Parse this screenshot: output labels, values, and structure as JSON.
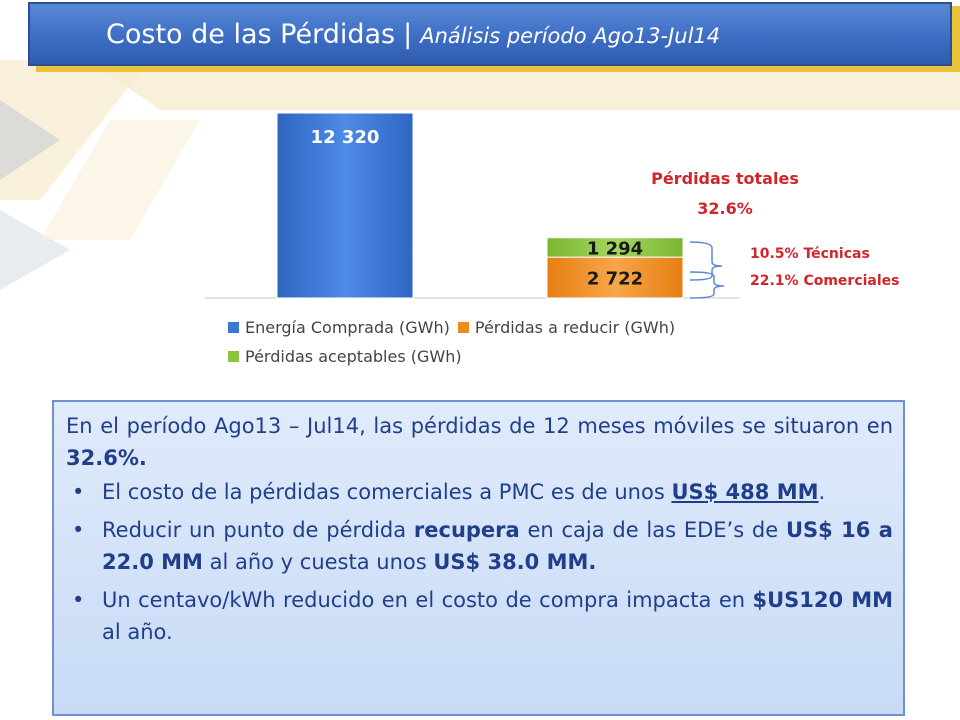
{
  "header": {
    "title": "Costo de las Pérdidas",
    "separator": "|",
    "subtitle": "Análisis período Ago13-Jul14"
  },
  "colors": {
    "title_bar": "#3d6ec4",
    "title_shadow": "#e8c23a",
    "energia": "#3a78d6",
    "perdidas_reducir": "#f08a1c",
    "perdidas_aceptables": "#8cc43e",
    "annotation_red": "#d0262b",
    "text_blue": "#1f3f8a"
  },
  "chart_data": {
    "type": "bar",
    "stacked": true,
    "categories": [
      "",
      ""
    ],
    "series": [
      {
        "name": "Energía Comprada (GWh)",
        "values": [
          12320,
          null
        ],
        "labels": [
          "12 320",
          ""
        ]
      },
      {
        "name": "Pérdidas a reducir (GWh)",
        "values": [
          null,
          2722
        ],
        "labels": [
          "",
          "2 722"
        ]
      },
      {
        "name": "Pérdidas aceptables (GWh)",
        "values": [
          null,
          1294
        ],
        "labels": [
          "",
          "1 294"
        ]
      }
    ],
    "legend_position": "bottom",
    "grid": false,
    "annotations": {
      "total_label": "Pérdidas totales",
      "total_value": "32.6%",
      "tecnicas": "10.5% Técnicas",
      "comerciales": "22.1% Comerciales"
    }
  },
  "textbox": {
    "intro_a": "En el período Ago13 – Jul14, las pérdidas de 12 meses móviles se situaron en ",
    "intro_b": "32.6%.",
    "b1_a": "El costo de la pérdidas comerciales a PMC es de unos ",
    "b1_b": "US$ 488 MM",
    "b1_c": ".",
    "b2_a": "Reducir un punto de pérdida ",
    "b2_b": "recupera",
    "b2_c": " en caja de las EDE’s de ",
    "b2_d": "US$ 16 a 22.0 MM",
    "b2_e": " al año y cuesta unos ",
    "b2_f": "US$ 38.0 MM.",
    "b3_a": "Un centavo/kWh reducido en el costo de compra impacta en ",
    "b3_b": "$US120 MM",
    "b3_c": " al año."
  }
}
